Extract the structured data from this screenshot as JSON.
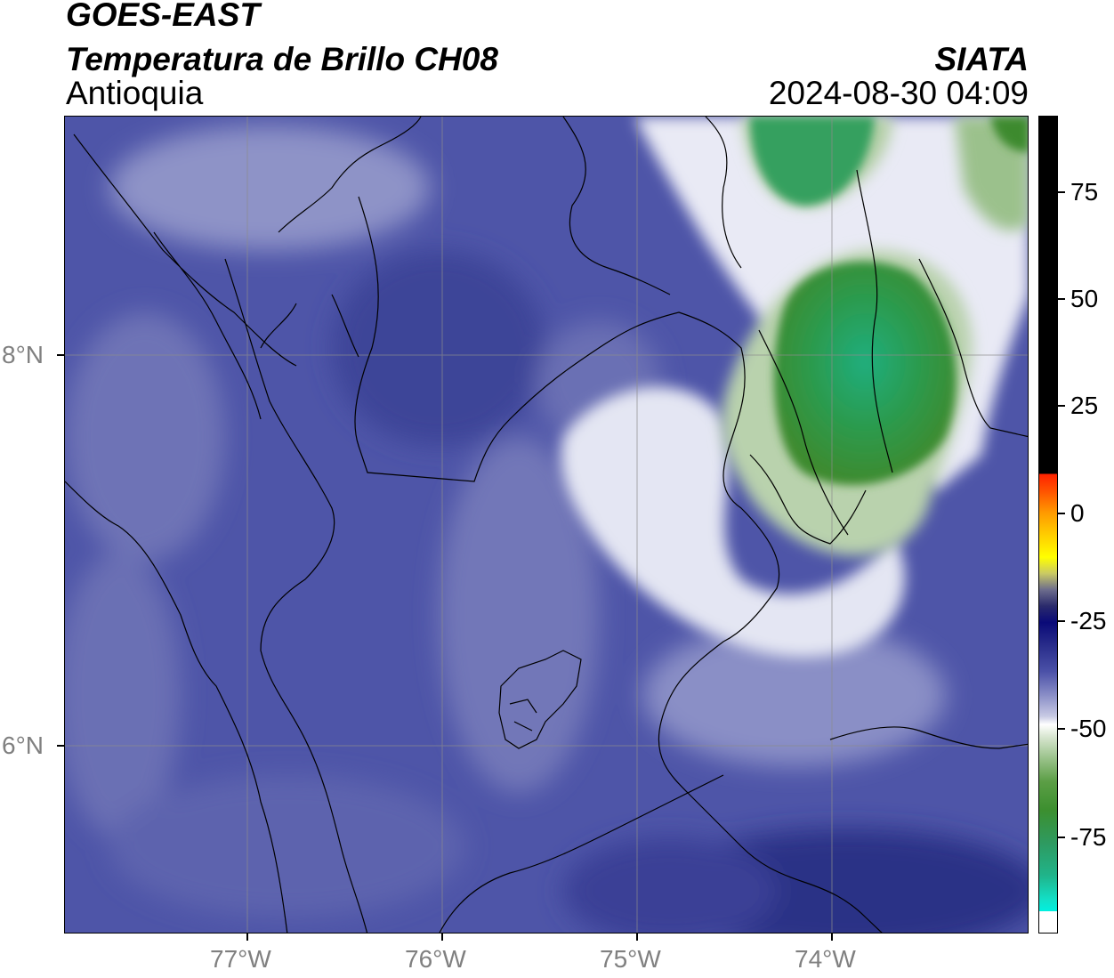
{
  "header": {
    "satellite": "GOES-EAST",
    "product": "Temperatura de Brillo CH08",
    "region": "Antioquia",
    "agency": "SIATA",
    "timestamp": "2024-08-30 04:09"
  },
  "axes": {
    "x_ticks": [
      "77°W",
      "76°W",
      "75°W",
      "74°W"
    ],
    "y_ticks": [
      "8°N",
      "6°N"
    ]
  },
  "colorbar": {
    "ticks": [
      "75",
      "50",
      "25",
      "0",
      "-25",
      "-50",
      "-75"
    ]
  },
  "colors": {
    "background_field": "#4e55a8",
    "cold_cloud": "#3c8f2f",
    "coldest_cloud": "#1fb07c",
    "white_band": "#f2f3f8",
    "border_lines": "#000000",
    "gridlines": "#8c8c8c"
  }
}
